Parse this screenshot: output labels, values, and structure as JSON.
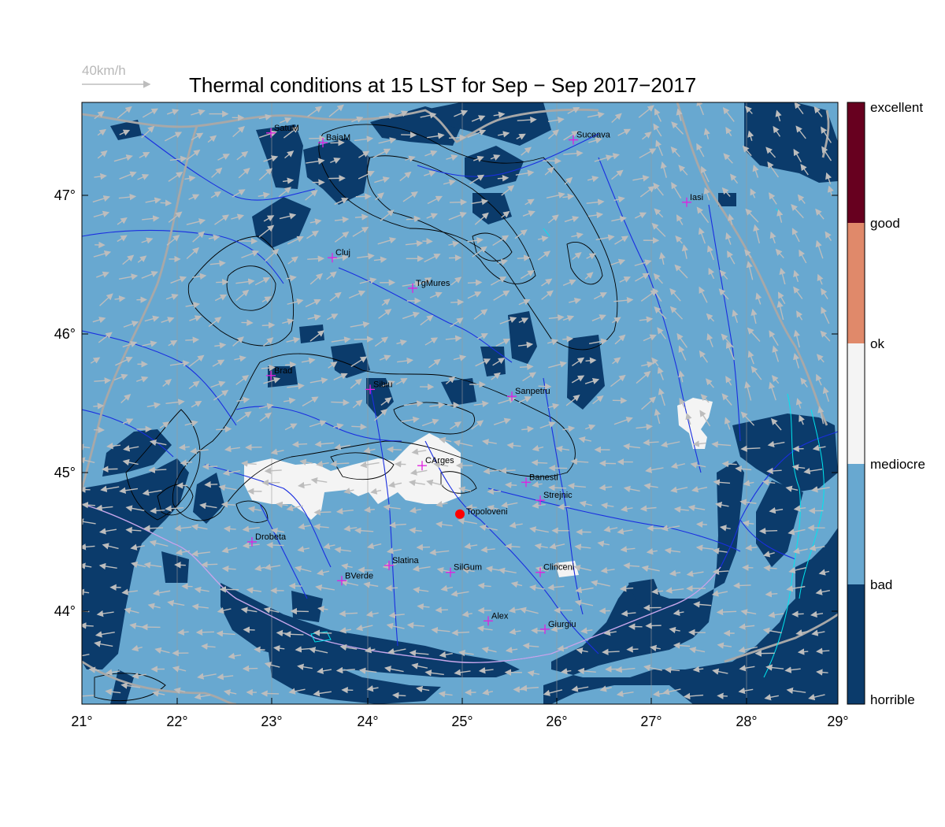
{
  "title": "Thermal conditions at 15 LST for Sep − Sep  2017−2017",
  "wind_key": {
    "label": "40km/h"
  },
  "x_ticks": [
    "21°",
    "22°",
    "23°",
    "24°",
    "25°",
    "26°",
    "27°",
    "28°",
    "29°"
  ],
  "y_ticks": [
    "47°",
    "46°",
    "45°",
    "44°"
  ],
  "legend": {
    "classes": [
      "excellent",
      "good",
      "ok",
      "mediocre",
      "bad",
      "horrible"
    ],
    "colors": {
      "excellent": "#67001f",
      "good": "#e0896a",
      "ok": "#f4f4f4",
      "bad": "#68a8d0",
      "horrible": "#0b3b6b"
    }
  },
  "cities": [
    {
      "name": "SatuM",
      "lon": 23.0,
      "lat": 47.45
    },
    {
      "name": "BaiaM",
      "lon": 23.55,
      "lat": 47.38
    },
    {
      "name": "Suceava",
      "lon": 26.2,
      "lat": 47.4
    },
    {
      "name": "Iasi",
      "lon": 27.4,
      "lat": 46.95
    },
    {
      "name": "Cluj",
      "lon": 23.65,
      "lat": 46.55
    },
    {
      "name": "TgMures",
      "lon": 24.5,
      "lat": 46.33
    },
    {
      "name": "Brad",
      "lon": 23.0,
      "lat": 45.7
    },
    {
      "name": "Sibiu",
      "lon": 24.05,
      "lat": 45.6
    },
    {
      "name": "Sanpetru",
      "lon": 25.55,
      "lat": 45.55
    },
    {
      "name": "CArges",
      "lon": 24.6,
      "lat": 45.05
    },
    {
      "name": "Banesti",
      "lon": 25.7,
      "lat": 44.93
    },
    {
      "name": "Strejnic",
      "lon": 25.85,
      "lat": 44.8
    },
    {
      "name": "Drobeta",
      "lon": 22.8,
      "lat": 44.5
    },
    {
      "name": "Slatina",
      "lon": 24.25,
      "lat": 44.33
    },
    {
      "name": "SilGum",
      "lon": 24.9,
      "lat": 44.28
    },
    {
      "name": "Clinceni",
      "lon": 25.85,
      "lat": 44.28
    },
    {
      "name": "BVerde",
      "lon": 23.75,
      "lat": 44.22
    },
    {
      "name": "Alex",
      "lon": 25.3,
      "lat": 43.93
    },
    {
      "name": "Giurgiu",
      "lon": 25.9,
      "lat": 43.87
    }
  ],
  "site": {
    "name": "Topoloveni",
    "lon": 25.0,
    "lat": 44.7
  }
}
